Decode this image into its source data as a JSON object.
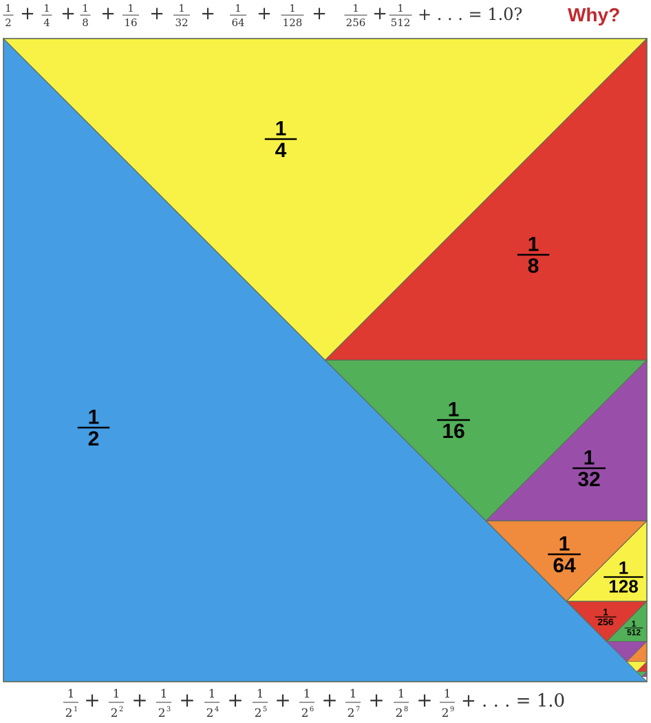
{
  "top_equation": {
    "terms": [
      {
        "num": "1",
        "den": "2"
      },
      {
        "num": "1",
        "den": "4"
      },
      {
        "num": "1",
        "den": "8"
      },
      {
        "num": "1",
        "den": "16"
      },
      {
        "num": "1",
        "den": "32"
      },
      {
        "num": "1",
        "den": "64"
      },
      {
        "num": "1",
        "den": "128"
      },
      {
        "num": "1",
        "den": "256"
      },
      {
        "num": "1",
        "den": "512"
      }
    ],
    "plus": "+",
    "tail": "+ . . . = 1.0?",
    "question": "Why?"
  },
  "bottom_equation": {
    "terms": [
      {
        "num": "1",
        "base": "2",
        "exp": "1"
      },
      {
        "num": "1",
        "base": "2",
        "exp": "2"
      },
      {
        "num": "1",
        "base": "2",
        "exp": "3"
      },
      {
        "num": "1",
        "base": "2",
        "exp": "4"
      },
      {
        "num": "1",
        "base": "2",
        "exp": "5"
      },
      {
        "num": "1",
        "base": "2",
        "exp": "6"
      },
      {
        "num": "1",
        "base": "2",
        "exp": "7"
      },
      {
        "num": "1",
        "base": "2",
        "exp": "8"
      },
      {
        "num": "1",
        "base": "2",
        "exp": "9"
      }
    ],
    "plus": "+",
    "tail": "+ . . . = 1.0"
  },
  "regions": [
    {
      "name": "half",
      "num": "1",
      "den": "2",
      "color": "#459de4"
    },
    {
      "name": "quarter",
      "num": "1",
      "den": "4",
      "color": "#f8f246"
    },
    {
      "name": "eighth",
      "num": "1",
      "den": "8",
      "color": "#de3a31"
    },
    {
      "name": "sixteenth",
      "num": "1",
      "den": "16",
      "color": "#52b058"
    },
    {
      "name": "thirty-second",
      "num": "1",
      "den": "32",
      "color": "#994fa9"
    },
    {
      "name": "sixty-fourth",
      "num": "1",
      "den": "64",
      "color": "#f08a3c"
    },
    {
      "name": "one-28th",
      "num": "1",
      "den": "128",
      "color": "#f8f246"
    },
    {
      "name": "two-56th",
      "num": "1",
      "den": "256",
      "color": "#de3a31"
    },
    {
      "name": "five-12th",
      "num": "1",
      "den": "512",
      "color": "#52b058"
    },
    {
      "name": "piece-10",
      "color": "#994fa9"
    },
    {
      "name": "piece-11",
      "color": "#f08a3c"
    },
    {
      "name": "piece-12",
      "color": "#f8f246"
    },
    {
      "name": "piece-13",
      "color": "#de3a31"
    },
    {
      "name": "piece-14",
      "color": "#52b058"
    },
    {
      "name": "piece-15",
      "color": "#994fa9"
    }
  ]
}
